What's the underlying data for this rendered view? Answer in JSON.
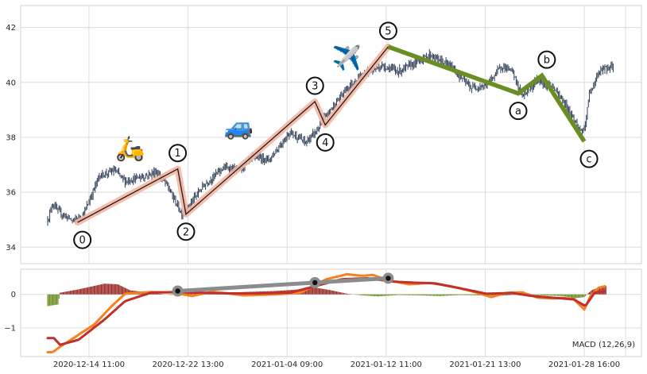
{
  "chart_data": [
    {
      "type": "candlestick",
      "title": "",
      "xlabel": "",
      "ylabel": "",
      "ylim": [
        33.4,
        42.8
      ],
      "grid": true,
      "yticks": [
        34,
        36,
        38,
        40,
        42
      ],
      "xticks": [
        "2020-12-14 11:00",
        "2020-12-22 13:00",
        "2021-01-04 09:00",
        "2021-01-12 11:00",
        "2021-01-21 13:00",
        "2021-01-28 16:00"
      ],
      "x_range_bars": [
        0,
        560
      ],
      "xtick_bars": [
        40,
        136,
        232,
        328,
        424,
        520
      ],
      "price_series": {
        "color": "#2f3e55",
        "anchors": [
          [
            0,
            35.0
          ],
          [
            5,
            35.6
          ],
          [
            10,
            35.3
          ],
          [
            25,
            34.95
          ],
          [
            35,
            35.2
          ],
          [
            50,
            36.6
          ],
          [
            65,
            36.8
          ],
          [
            75,
            36.4
          ],
          [
            85,
            36.5
          ],
          [
            95,
            36.6
          ],
          [
            105,
            36.75
          ],
          [
            115,
            36.3
          ],
          [
            130,
            35.2
          ],
          [
            135,
            35.4
          ],
          [
            150,
            36.2
          ],
          [
            170,
            36.9
          ],
          [
            185,
            36.8
          ],
          [
            200,
            37.3
          ],
          [
            215,
            37.2
          ],
          [
            235,
            38.2
          ],
          [
            250,
            37.8
          ],
          [
            262,
            38.3
          ],
          [
            268,
            38.7
          ],
          [
            290,
            39.8
          ],
          [
            310,
            40.4
          ],
          [
            325,
            40.6
          ],
          [
            340,
            40.4
          ],
          [
            355,
            40.7
          ],
          [
            370,
            41.0
          ],
          [
            390,
            40.6
          ],
          [
            410,
            39.8
          ],
          [
            425,
            39.9
          ],
          [
            440,
            40.6
          ],
          [
            450,
            40.4
          ],
          [
            460,
            39.5
          ],
          [
            475,
            40.1
          ],
          [
            490,
            39.8
          ],
          [
            505,
            39.0
          ],
          [
            515,
            38.3
          ],
          [
            520,
            38.2
          ],
          [
            525,
            39.6
          ],
          [
            535,
            40.4
          ],
          [
            540,
            40.5
          ],
          [
            548,
            40.6
          ]
        ]
      },
      "elliott_wave": [
        {
          "label": "0",
          "bar": 29,
          "price": 34.9,
          "label_pos": "below"
        },
        {
          "label": "1",
          "bar": 126,
          "price": 36.85,
          "label_pos": "above"
        },
        {
          "label": "2",
          "bar": 134,
          "price": 35.2,
          "label_pos": "below"
        },
        {
          "label": "3",
          "bar": 259,
          "price": 39.3,
          "label_pos": "above"
        },
        {
          "label": "4",
          "bar": 269,
          "price": 38.45,
          "label_pos": "below"
        },
        {
          "label": "5",
          "bar": 330,
          "price": 41.3,
          "label_pos": "above"
        }
      ],
      "corrective_wave": [
        {
          "label": "5",
          "bar": 330,
          "price": 41.3,
          "label_pos": "none"
        },
        {
          "label": "a",
          "bar": 456,
          "price": 39.6,
          "label_pos": "below"
        },
        {
          "label": "b",
          "bar": 479,
          "price": 40.25,
          "label_pos": "above"
        },
        {
          "label": "c",
          "bar": 520,
          "price": 37.85,
          "label_pos": "below"
        }
      ],
      "impulse_colors": {
        "band": "#f4b6a0",
        "line": "#1a1a1a"
      },
      "corrective_color": "#6b8e23",
      "emoji_markers": [
        {
          "symbol": "🛵",
          "name": "scooter-icon",
          "bar": 80,
          "price": 37.3
        },
        {
          "symbol": "🚙",
          "name": "car-icon",
          "bar": 185,
          "price": 38.1
        },
        {
          "symbol": "✈️",
          "name": "airplane-icon",
          "bar": 290,
          "price": 40.6
        }
      ]
    },
    {
      "type": "macd",
      "label": "MACD (12,26,9)",
      "ylim": [
        -1.85,
        0.75
      ],
      "yticks": [
        -1,
        0
      ],
      "histogram_colors": {
        "positive": "#9b2a25",
        "negative": "#6b8e23"
      },
      "histogram": [
        [
          0,
          -0.35
        ],
        [
          10,
          -0.3
        ],
        [
          12,
          0.05
        ],
        [
          30,
          0.15
        ],
        [
          55,
          0.32
        ],
        [
          68,
          0.3
        ],
        [
          80,
          0.12
        ],
        [
          100,
          0.05
        ],
        [
          120,
          -0.02
        ],
        [
          140,
          0.05
        ],
        [
          160,
          0.03
        ],
        [
          190,
          0.07
        ],
        [
          220,
          0.1
        ],
        [
          240,
          0.14
        ],
        [
          260,
          0.2
        ],
        [
          275,
          0.12
        ],
        [
          290,
          0.02
        ],
        [
          305,
          -0.03
        ],
        [
          320,
          -0.06
        ],
        [
          340,
          -0.02
        ],
        [
          360,
          -0.03
        ],
        [
          380,
          -0.05
        ],
        [
          400,
          -0.02
        ],
        [
          420,
          -0.03
        ],
        [
          440,
          -0.04
        ],
        [
          460,
          0.0
        ],
        [
          480,
          -0.03
        ],
        [
          500,
          -0.05
        ],
        [
          510,
          -0.12
        ],
        [
          520,
          -0.08
        ],
        [
          527,
          0.12
        ],
        [
          535,
          0.22
        ],
        [
          540,
          0.25
        ]
      ],
      "series": [
        {
          "name": "",
          "color": "#f5821f",
          "values": [
            [
              0,
              -1.72
            ],
            [
              5,
              -1.72
            ],
            [
              10,
              -1.6
            ],
            [
              25,
              -1.3
            ],
            [
              45,
              -0.9
            ],
            [
              62,
              -0.35
            ],
            [
              75,
              0.02
            ],
            [
              100,
              0.07
            ],
            [
              120,
              0.06
            ],
            [
              140,
              -0.05
            ],
            [
              160,
              0.08
            ],
            [
              190,
              -0.03
            ],
            [
              220,
              0.0
            ],
            [
              245,
              0.05
            ],
            [
              270,
              0.45
            ],
            [
              290,
              0.6
            ],
            [
              305,
              0.55
            ],
            [
              315,
              0.58
            ],
            [
              330,
              0.42
            ],
            [
              350,
              0.3
            ],
            [
              370,
              0.34
            ],
            [
              390,
              0.25
            ],
            [
              410,
              0.1
            ],
            [
              430,
              -0.08
            ],
            [
              445,
              0.05
            ],
            [
              460,
              0.06
            ],
            [
              475,
              -0.1
            ],
            [
              490,
              -0.12
            ],
            [
              500,
              -0.1
            ],
            [
              510,
              -0.15
            ],
            [
              520,
              -0.45
            ],
            [
              526,
              -0.05
            ],
            [
              534,
              0.2
            ],
            [
              541,
              0.25
            ]
          ]
        },
        {
          "name": "",
          "color": "#c1302a",
          "values": [
            [
              0,
              -1.3
            ],
            [
              6,
              -1.3
            ],
            [
              12,
              -1.5
            ],
            [
              30,
              -1.35
            ],
            [
              55,
              -0.75
            ],
            [
              75,
              -0.2
            ],
            [
              100,
              0.05
            ],
            [
              125,
              0.07
            ],
            [
              150,
              0.05
            ],
            [
              175,
              0.03
            ],
            [
              205,
              0.03
            ],
            [
              235,
              0.05
            ],
            [
              260,
              0.25
            ],
            [
              285,
              0.45
            ],
            [
              310,
              0.48
            ],
            [
              335,
              0.38
            ],
            [
              355,
              0.35
            ],
            [
              375,
              0.33
            ],
            [
              400,
              0.18
            ],
            [
              425,
              0.02
            ],
            [
              450,
              0.04
            ],
            [
              470,
              -0.05
            ],
            [
              490,
              -0.1
            ],
            [
              510,
              -0.15
            ],
            [
              521,
              -0.35
            ],
            [
              530,
              0.05
            ],
            [
              541,
              0.1
            ]
          ]
        }
      ],
      "divergence_line": {
        "color": "#8c8c8c",
        "points": [
          [
            126,
            0.1
          ],
          [
            259,
            0.35
          ],
          [
            330,
            0.48
          ]
        ]
      },
      "xticks": [
        "2020-12-14 11:00",
        "2020-12-22 13:00",
        "2021-01-04 09:00",
        "2021-01-12 11:00",
        "2021-01-21 13:00",
        "2021-01-28 16:00"
      ]
    }
  ]
}
